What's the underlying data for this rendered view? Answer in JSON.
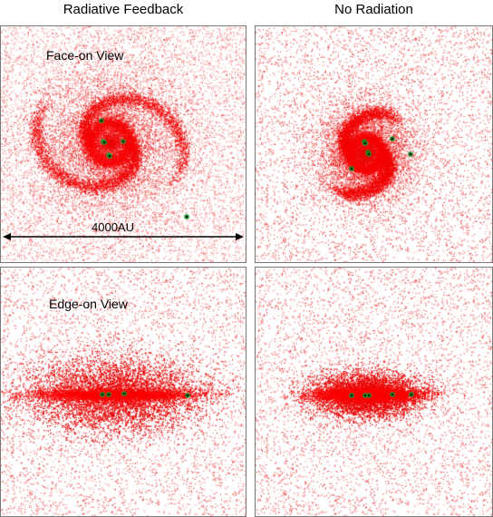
{
  "columns": {
    "left_title": "Radiative Feedback",
    "right_title": "No Radiation"
  },
  "panels": [
    {
      "id": "p1",
      "label": "Face-on View",
      "view": "face",
      "model": "radiative"
    },
    {
      "id": "p2",
      "label": "",
      "view": "face",
      "model": "noradiation"
    },
    {
      "id": "p3",
      "label": "Edge-on View",
      "view": "edge",
      "model": "radiative"
    },
    {
      "id": "p4",
      "label": "",
      "view": "edge",
      "model": "noradiation"
    }
  ],
  "scale_bar": {
    "label": "4000AU"
  },
  "colors": {
    "gas": "#ff0000",
    "star": "#1a8a2a",
    "star_core": "#000000",
    "frame": "#777777"
  }
}
